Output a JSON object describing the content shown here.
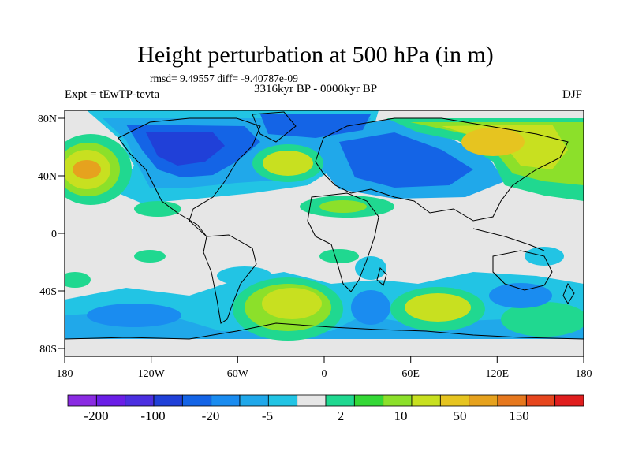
{
  "title": "Height perturbation at 500 hPa (in m)",
  "stats": "rmsd= 9.49557 diff= -9.40787e-09",
  "left_label": "Expt = tEwTP-tevta",
  "center_label": "3316kyr BP - 0000kyr BP",
  "right_label": "DJF",
  "axes": {
    "x_ticks": [
      "180",
      "120W",
      "60W",
      "0",
      "60E",
      "120E",
      "180"
    ],
    "y_ticks": [
      "80N",
      "40N",
      "0",
      "40S",
      "80S"
    ]
  },
  "colorbar": {
    "colors": [
      "#8a2be2",
      "#6a1ee6",
      "#4b2fe0",
      "#2040d8",
      "#1464e6",
      "#1a8cf0",
      "#20a8ea",
      "#22c4e4",
      "#e6e6e6",
      "#20d890",
      "#34d836",
      "#8ce02a",
      "#c8e020",
      "#e6c420",
      "#e6a21e",
      "#e6781e",
      "#e6461e",
      "#e01e1e"
    ],
    "labels": [
      "-200",
      "-100",
      "-20",
      "-5",
      "2",
      "10",
      "50",
      "150"
    ]
  },
  "palette": {
    "neutral": "#e6e6e6",
    "neg_weak": "#22c4e4",
    "neg_mid": "#20a8ea",
    "neg_strong": "#1464e6",
    "neg_stronger": "#2040d8",
    "pos_weak": "#20d890",
    "pos_mid": "#8ce02a",
    "pos_strong": "#c8e020",
    "pos_stronger": "#e6c420",
    "pos_peak": "#e6a21e"
  }
}
